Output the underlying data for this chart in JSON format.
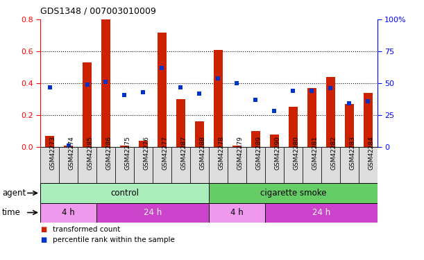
{
  "title": "GDS1348 / 007003010009",
  "samples": [
    "GSM42273",
    "GSM42274",
    "GSM42285",
    "GSM42286",
    "GSM42275",
    "GSM42276",
    "GSM42277",
    "GSM42287",
    "GSM42288",
    "GSM42278",
    "GSM42279",
    "GSM42289",
    "GSM42290",
    "GSM42280",
    "GSM42281",
    "GSM42282",
    "GSM42283",
    "GSM42284"
  ],
  "red_bars": [
    0.07,
    0.01,
    0.53,
    0.8,
    0.01,
    0.04,
    0.72,
    0.3,
    0.16,
    0.61,
    0.01,
    0.1,
    0.08,
    0.25,
    0.37,
    0.44,
    0.27,
    0.34
  ],
  "blue_dots_pct": [
    47,
    1,
    49,
    51,
    41,
    43,
    62,
    47,
    42,
    54,
    50,
    37,
    28,
    44,
    44,
    46,
    34,
    36
  ],
  "ylim_left": [
    0.0,
    0.8
  ],
  "ylim_right": [
    0,
    100
  ],
  "yticks_left": [
    0.0,
    0.2,
    0.4,
    0.6,
    0.8
  ],
  "yticks_right": [
    0,
    25,
    50,
    75,
    100
  ],
  "bar_color": "#cc2200",
  "dot_color": "#0033cc",
  "agent_control_color": "#aaeebb",
  "agent_smoke_color": "#66cc66",
  "time_4h_color": "#ee99ee",
  "time_24h_color": "#cc44cc",
  "legend_red": "transformed count",
  "legend_blue": "percentile rank within the sample",
  "n_samples": 18,
  "n_control": 9,
  "n_4h_ctrl": 3,
  "n_24h_ctrl": 6,
  "n_4h_smoke": 3,
  "n_24h_smoke": 6
}
